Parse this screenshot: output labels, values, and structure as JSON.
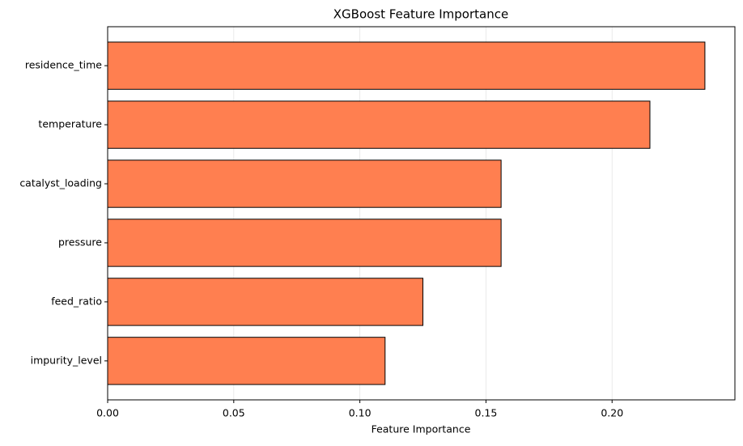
{
  "chart_data": {
    "type": "barh",
    "title": "XGBoost Feature Importance",
    "xlabel": "Feature Importance",
    "categories": [
      "residence_time",
      "temperature",
      "catalyst_loading",
      "pressure",
      "feed_ratio",
      "impurity_level"
    ],
    "values": [
      0.2368,
      0.215,
      0.156,
      0.156,
      0.125,
      0.11
    ],
    "color": "#ff7f50",
    "edgecolor": "#000000",
    "xlim": [
      0,
      0.2487
    ],
    "xticks": [
      {
        "value": 0,
        "label": "0.00"
      },
      {
        "value": 0.05,
        "label": "0.05"
      },
      {
        "value": 0.1,
        "label": "0.10"
      },
      {
        "value": 0.15,
        "label": "0.15"
      },
      {
        "value": 0.2,
        "label": "0.20"
      }
    ],
    "grid": true
  }
}
